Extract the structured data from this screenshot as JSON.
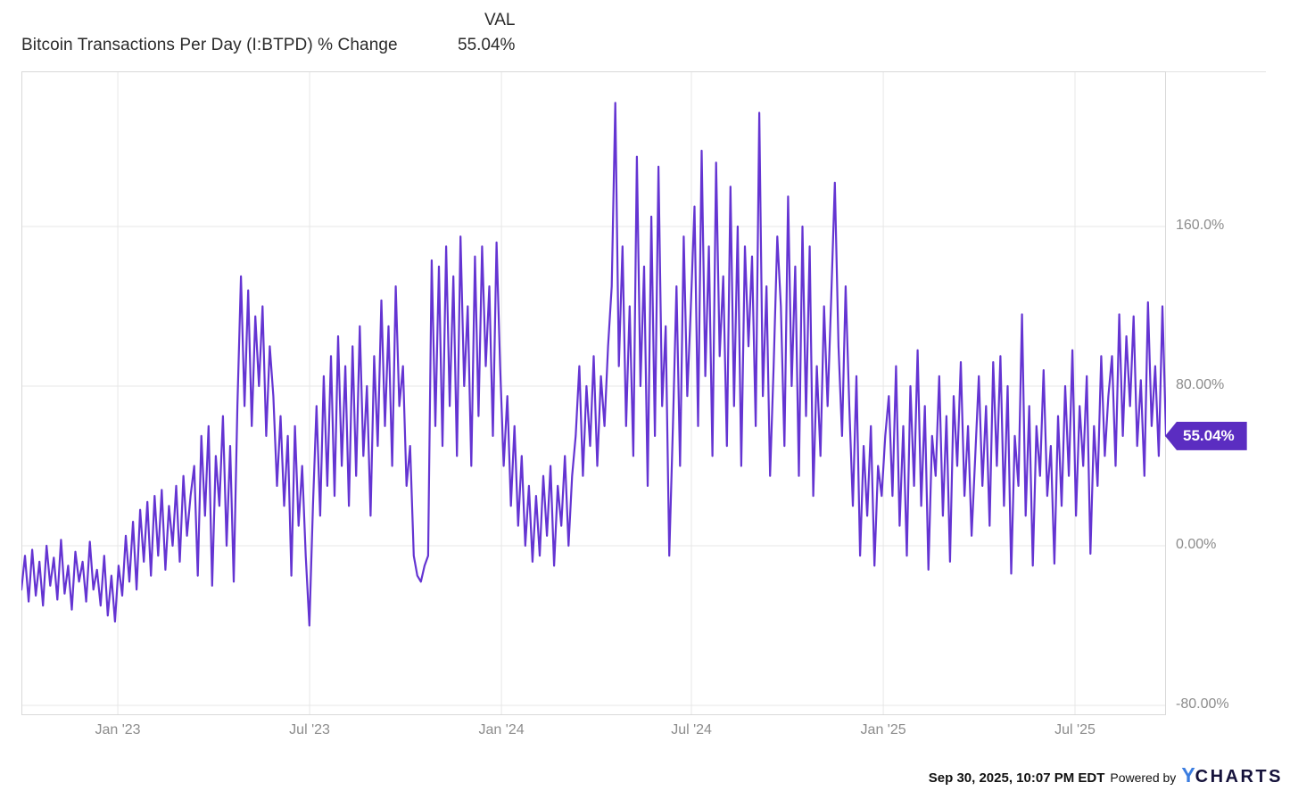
{
  "header": {
    "title": "Bitcoin Transactions Per Day (I:BTPD) % Change",
    "val_label": "VAL",
    "val_value": "55.04%"
  },
  "badge": {
    "label": "55.04%"
  },
  "footer": {
    "timestamp": "Sep 30, 2025, 10:07 PM EDT",
    "powered_by": "Powered by",
    "logo_y": "Y",
    "logo_charts": "CHARTS"
  },
  "colors": {
    "line": "#6434d2",
    "badge": "#5b2dc1",
    "grid": "#e7e7e7",
    "border": "#d9d9d9",
    "axis_text": "#8c8c8c",
    "logo_blue": "#3b7de0",
    "logo_dark": "#15123b"
  },
  "chart_data": {
    "type": "line",
    "title": "Bitcoin Transactions Per Day (I:BTPD) % Change",
    "ticker": "I:BTPD",
    "unit": "% change",
    "grid": true,
    "legend_position": "none",
    "x_range": [
      "Oct 2022",
      "Sep 30, 2025"
    ],
    "ylim": [
      -85,
      238
    ],
    "y_ticks": [
      {
        "label": "160.0%",
        "value": 160
      },
      {
        "label": "80.00%",
        "value": 80
      },
      {
        "label": "0.00%",
        "value": 0
      },
      {
        "label": "-80.00%",
        "value": -80
      }
    ],
    "x_ticks": [
      {
        "label": "Jan '23",
        "pos": 0.0842
      },
      {
        "label": "Jul '23",
        "pos": 0.2518
      },
      {
        "label": "Jan '24",
        "pos": 0.4194
      },
      {
        "label": "Jul '24",
        "pos": 0.5854
      },
      {
        "label": "Jan '25",
        "pos": 0.753
      },
      {
        "label": "Jul '25",
        "pos": 0.9205
      }
    ],
    "last_value": 55.04,
    "last_value_label": "55.04%",
    "values": [
      -22,
      -5,
      -28,
      -2,
      -25,
      -8,
      -30,
      0,
      -20,
      -6,
      -27,
      3,
      -24,
      -10,
      -32,
      -3,
      -18,
      -8,
      -28,
      2,
      -22,
      -12,
      -30,
      -5,
      -35,
      -15,
      -38,
      -10,
      -25,
      5,
      -18,
      12,
      -22,
      18,
      -8,
      22,
      -15,
      25,
      -5,
      28,
      -12,
      20,
      0,
      30,
      -8,
      35,
      5,
      25,
      40,
      -15,
      55,
      15,
      60,
      -20,
      45,
      20,
      65,
      0,
      50,
      -18,
      70,
      135,
      70,
      128,
      60,
      115,
      80,
      120,
      55,
      100,
      75,
      30,
      65,
      20,
      55,
      -15,
      60,
      10,
      40,
      -5,
      -40,
      20,
      70,
      15,
      85,
      30,
      95,
      25,
      105,
      40,
      90,
      20,
      100,
      35,
      110,
      45,
      80,
      15,
      95,
      50,
      123,
      60,
      110,
      40,
      130,
      70,
      90,
      30,
      50,
      -5,
      -15,
      -18,
      -10,
      -5,
      143,
      60,
      140,
      50,
      150,
      70,
      135,
      45,
      155,
      80,
      120,
      40,
      145,
      65,
      150,
      90,
      130,
      55,
      152,
      90,
      40,
      75,
      20,
      60,
      10,
      45,
      0,
      30,
      -8,
      25,
      -5,
      35,
      5,
      40,
      -10,
      30,
      10,
      45,
      0,
      35,
      55,
      90,
      35,
      80,
      50,
      95,
      40,
      85,
      60,
      100,
      130,
      222,
      90,
      150,
      60,
      120,
      45,
      195,
      80,
      140,
      30,
      165,
      55,
      190,
      70,
      110,
      -5,
      60,
      130,
      40,
      155,
      75,
      120,
      170,
      60,
      198,
      85,
      150,
      45,
      192,
      95,
      135,
      50,
      180,
      70,
      160,
      40,
      150,
      100,
      145,
      60,
      217,
      75,
      130,
      35,
      90,
      155,
      120,
      50,
      175,
      80,
      140,
      35,
      160,
      65,
      150,
      25,
      90,
      45,
      120,
      70,
      125,
      182,
      100,
      55,
      130,
      70,
      20,
      85,
      -5,
      50,
      15,
      60,
      -10,
      40,
      25,
      55,
      75,
      25,
      90,
      10,
      60,
      -5,
      80,
      30,
      98,
      20,
      70,
      -12,
      55,
      35,
      85,
      15,
      65,
      -8,
      75,
      40,
      92,
      25,
      60,
      5,
      45,
      85,
      30,
      70,
      10,
      92,
      40,
      95,
      20,
      80,
      -14,
      55,
      30,
      116,
      15,
      70,
      -10,
      60,
      35,
      88,
      25,
      50,
      -9,
      65,
      20,
      80,
      35,
      98,
      15,
      70,
      40,
      85,
      -4,
      60,
      30,
      95,
      45,
      75,
      95,
      40,
      116,
      55,
      105,
      70,
      115,
      50,
      83,
      35,
      122,
      60,
      90,
      45,
      120,
      55.04
    ]
  }
}
